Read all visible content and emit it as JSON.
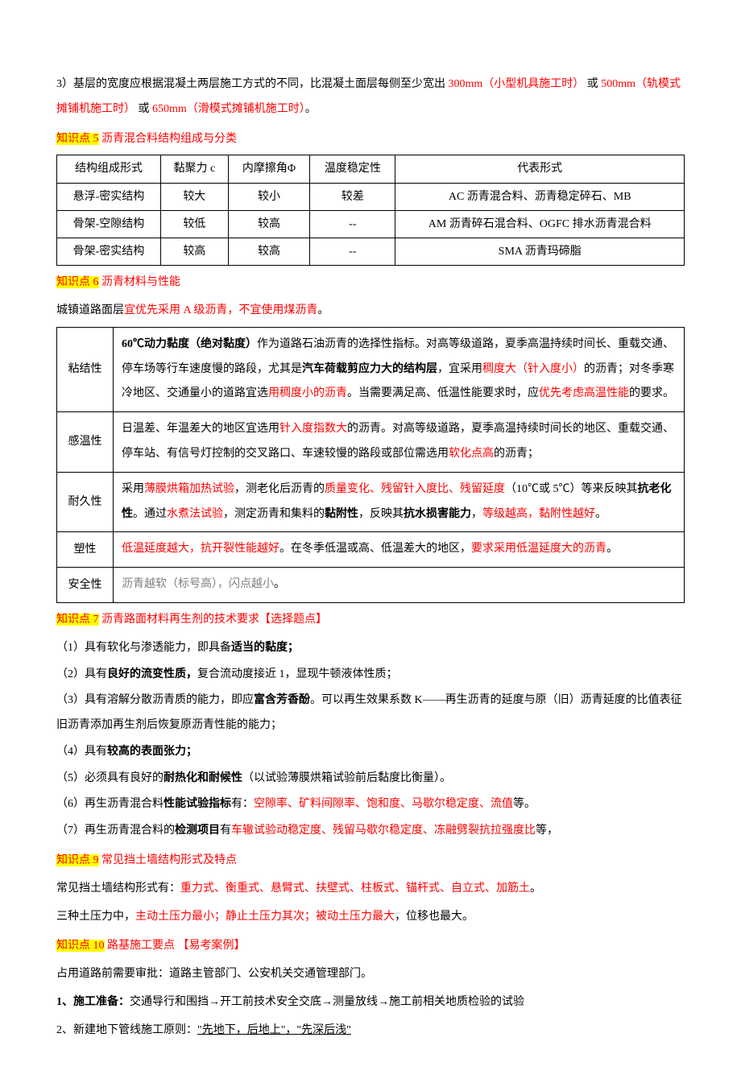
{
  "intro": {
    "pre": "3）基层的宽度应根据混凝土两层施工方式的不同，比混凝土面层每侧至少宽出 ",
    "v1": "300mm（小型机具施工时）",
    "mid1": " 或 ",
    "v2": "500mm（轨模式摊铺机施工时）",
    "mid2": " 或 ",
    "v3": "650mm（滑模式摊铺机施工时）",
    "end": "。"
  },
  "h5": {
    "tag": "知识点 5",
    "title": " 沥青混合料结构组成与分类"
  },
  "t1": {
    "head": [
      "结构组成形式",
      "黏聚力 c",
      "内摩擦角Φ",
      "温度稳定性",
      "代表形式"
    ],
    "rows": [
      [
        "悬浮-密实结构",
        "较大",
        "较小",
        "较差",
        "AC 沥青混合料、沥青稳定碎石、MB"
      ],
      [
        "骨架-空隙结构",
        "较低",
        "较高",
        "--",
        "AM 沥青碎石混合料、OGFC 排水沥青混合料"
      ],
      [
        "骨架-密实结构",
        "较高",
        "较高",
        "--",
        "SMA 沥青玛碲脂"
      ]
    ]
  },
  "h6": {
    "tag": "知识点 6",
    "title": " 沥青材料与性能"
  },
  "line6": {
    "a": "城镇道路面层",
    "b": "宜优先采用 A 级沥青，不宜使用煤沥青",
    "c": "。"
  },
  "t2": {
    "r1": {
      "label": "粘结性",
      "p1a": "60℃动力黏度（绝对黏度）",
      "p1b": "作为道路石油沥青的选择性指标。对高等级道路，夏季高温持续时间长、重载交通、停车场等行车速度慢的路段，尤其是",
      "p1c": "汽车荷载剪应力大的结构层",
      "p1d": "，宜采用",
      "p1e": "稠度大（针入度小）",
      "p1f": "的沥青；对冬季寒冷地区、交通量小的道路宜选",
      "p1g": "用稠度小的沥青",
      "p1h": "。当需要满足高、低温性能要求时，应",
      "p1i": "优先考虑高温性能",
      "p1j": "的要求。"
    },
    "r2": {
      "label": "感温性",
      "a": "日温差、年温差大的地区宜选用",
      "b": "针入度指数大",
      "c": "的沥青。对高等级道路，夏季高温持续时间长的地区、重载交通、停车站、有信号灯控制的交叉路口、车速较慢的路段或部位需选用",
      "d": "软化点高",
      "e": "的沥青；"
    },
    "r3": {
      "label": "耐久性",
      "a": "采用",
      "b": "薄膜烘箱加热试验",
      "c": "，测老化后沥青的",
      "d": "质量变化、残留针入度比、残留延度",
      "e": "（10℃或 5℃）等来反映其",
      "f": "抗老化性",
      "g": "。通过",
      "h": "水煮法试验",
      "i": "，测定沥青和集料的",
      "j": "黏附性",
      "k": "，反映其",
      "l": "抗水损害能力",
      "m": "，",
      "n": "等级越高，黏附性越好",
      "o": "。"
    },
    "r4": {
      "label": "塑性",
      "a": "低温延度越大，抗开裂性能越好",
      "b": "。在冬季低温或高、低温差大的地区，",
      "c": "要求采用低温延度大的沥青",
      "d": "。"
    },
    "r5": {
      "label": "安全性",
      "a": "沥青越软（标号高），闪点越小",
      "b": "。"
    }
  },
  "h7": {
    "tag": "知识点 7",
    "title": " 沥青路面材料再生剂的技术要求【选择题点】"
  },
  "list7": {
    "i1a": "（1）具有软化与渗透能力，即具备",
    "i1b": "适当的黏度；",
    "i2a": "（2）具有",
    "i2b": "良好的流变性质，",
    "i2c": "复合流动度接近 1，显现牛顿液体性质；",
    "i3a": "（3）具有溶解分散沥青质的能力，即应",
    "i3b": "富含芳香酚",
    "i3c": "。可以再生效果系数 K——再生沥青的延度与原（旧）沥青延度的比值表征旧沥青添加再生剂后恢复原沥青性能的能力；",
    "i4a": "（4）具有",
    "i4b": "较高的表面张力；",
    "i5a": "（5）必须具有良好的",
    "i5b": "耐热化和耐候性",
    "i5c": "（以试验薄膜烘箱试验前后黏度比衡量）。",
    "i6a": "（6）再生沥青混合料",
    "i6b": "性能试验指标",
    "i6c": "有：",
    "i6d": "空隙率、矿料间隙率、饱和度、马歇尔稳定度、流值",
    "i6e": "等。",
    "i7a": "（7）再生沥青混合料的",
    "i7b": "检测项目",
    "i7c": "有",
    "i7d": "车辙试验动稳定度、残留马歇尔稳定度、冻融劈裂抗拉强度比",
    "i7e": "等，"
  },
  "h9": {
    "tag": "知识点 9",
    "title": " 常见挡土墙结构形式及特点"
  },
  "p9a": {
    "a": "常见挡土墙结构形式有：",
    "b": "重力式、衡重式、悬臂式、扶壁式、柱板式、锚杆式、自立式、加筋土",
    "c": "。"
  },
  "p9b": {
    "a": "三种土压力中，",
    "b": "主动土压力最小；静止土压力其次；被动土压力最大",
    "c": "，位移也最大。"
  },
  "h10": {
    "tag": "知识点 10",
    "title": " 路基施工要点 【易考案例】"
  },
  "p10a": "占用道路前需要审批：道路主管部门、公安机关交通管理部门。",
  "p10b": {
    "a": "1、",
    "b": "施工准备：",
    "c": "交通导行和围挡→开工前技术安全交底→测量放线→施工前相关地质检验的试验"
  },
  "p10c": {
    "a": "2、新建地下管线施工原则：",
    "b": "\"先地下，后地上\"，\"先深后浅\""
  }
}
